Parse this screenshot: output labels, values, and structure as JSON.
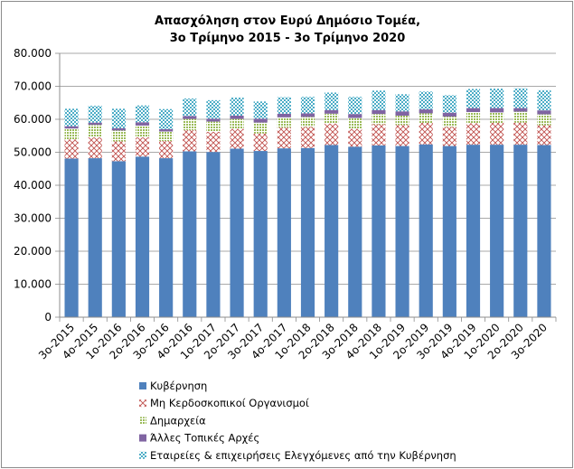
{
  "chart_data": {
    "type": "bar",
    "stacked": true,
    "title": "Απασχόληση στον Ευρύ Δημόσιο Τομέα,",
    "subtitle": "3ο Τρίμηνο 2015 - 3ο Τρίμηνο 2020",
    "xlabel": "",
    "ylabel": "",
    "ylim": [
      0,
      80000
    ],
    "yticks": [
      "0",
      "10.000",
      "20.000",
      "30.000",
      "40.000",
      "50.000",
      "60.000",
      "70.000",
      "80.000"
    ],
    "grid": true,
    "legend_position": "bottom",
    "categories": [
      "3ο-2015",
      "4ο-2015",
      "1ο-2016",
      "2ο-2016",
      "3ο-2016",
      "4ο-2016",
      "1ο-2017",
      "2ο-2017",
      "3ο-2017",
      "4ο-2017",
      "1ο-2018",
      "2ο-2018",
      "3ο-2018",
      "4ο-2018",
      "1ο-2019",
      "2ο-2019",
      "3ο-2019",
      "4ο-2019",
      "1ο-2020",
      "2ο-2020",
      "3ο-2020"
    ],
    "series": [
      {
        "name": "Κυβέρνηση",
        "pattern": "solid",
        "color": "#4f81bd",
        "values": [
          48100,
          48200,
          47300,
          48700,
          48200,
          50300,
          50100,
          51100,
          50400,
          51200,
          51300,
          52200,
          51700,
          52100,
          51900,
          52400,
          51900,
          52300,
          52300,
          52300,
          52200
        ]
      },
      {
        "name": "Μη Κερδοσκοπικοί Οργανισμοί",
        "pattern": "cross",
        "color": "#c0504d",
        "values": [
          5800,
          6300,
          6000,
          5800,
          5200,
          6400,
          6100,
          6000,
          5300,
          6300,
          6400,
          6500,
          5400,
          6400,
          6400,
          6500,
          5800,
          6500,
          6600,
          6700,
          6000
        ]
      },
      {
        "name": "Δημαρχεία",
        "pattern": "dots",
        "color": "#9bbb59",
        "values": [
          3300,
          3800,
          3300,
          3600,
          2900,
          3400,
          3100,
          3000,
          3300,
          3100,
          3000,
          3000,
          3300,
          3100,
          2800,
          2900,
          3100,
          3400,
          3200,
          3300,
          3300
        ]
      },
      {
        "name": "Άλλες Τοπικές Αρχές",
        "pattern": "solid",
        "color": "#8064a2",
        "values": [
          700,
          700,
          700,
          1000,
          700,
          900,
          900,
          1000,
          1200,
          1100,
          1100,
          1100,
          1200,
          1200,
          1300,
          1200,
          1200,
          1200,
          1300,
          1100,
          1200
        ]
      },
      {
        "name": "Εταιρείες & επιχειρήσεις Ελεγχόμενες από την Κυβέρνηση",
        "pattern": "dots",
        "color": "#4bacc6",
        "values": [
          5300,
          5100,
          5900,
          5100,
          6100,
          5300,
          5600,
          5500,
          5200,
          5000,
          5000,
          5300,
          5200,
          5900,
          5200,
          5400,
          5300,
          5800,
          5900,
          6000,
          6100
        ]
      }
    ]
  }
}
